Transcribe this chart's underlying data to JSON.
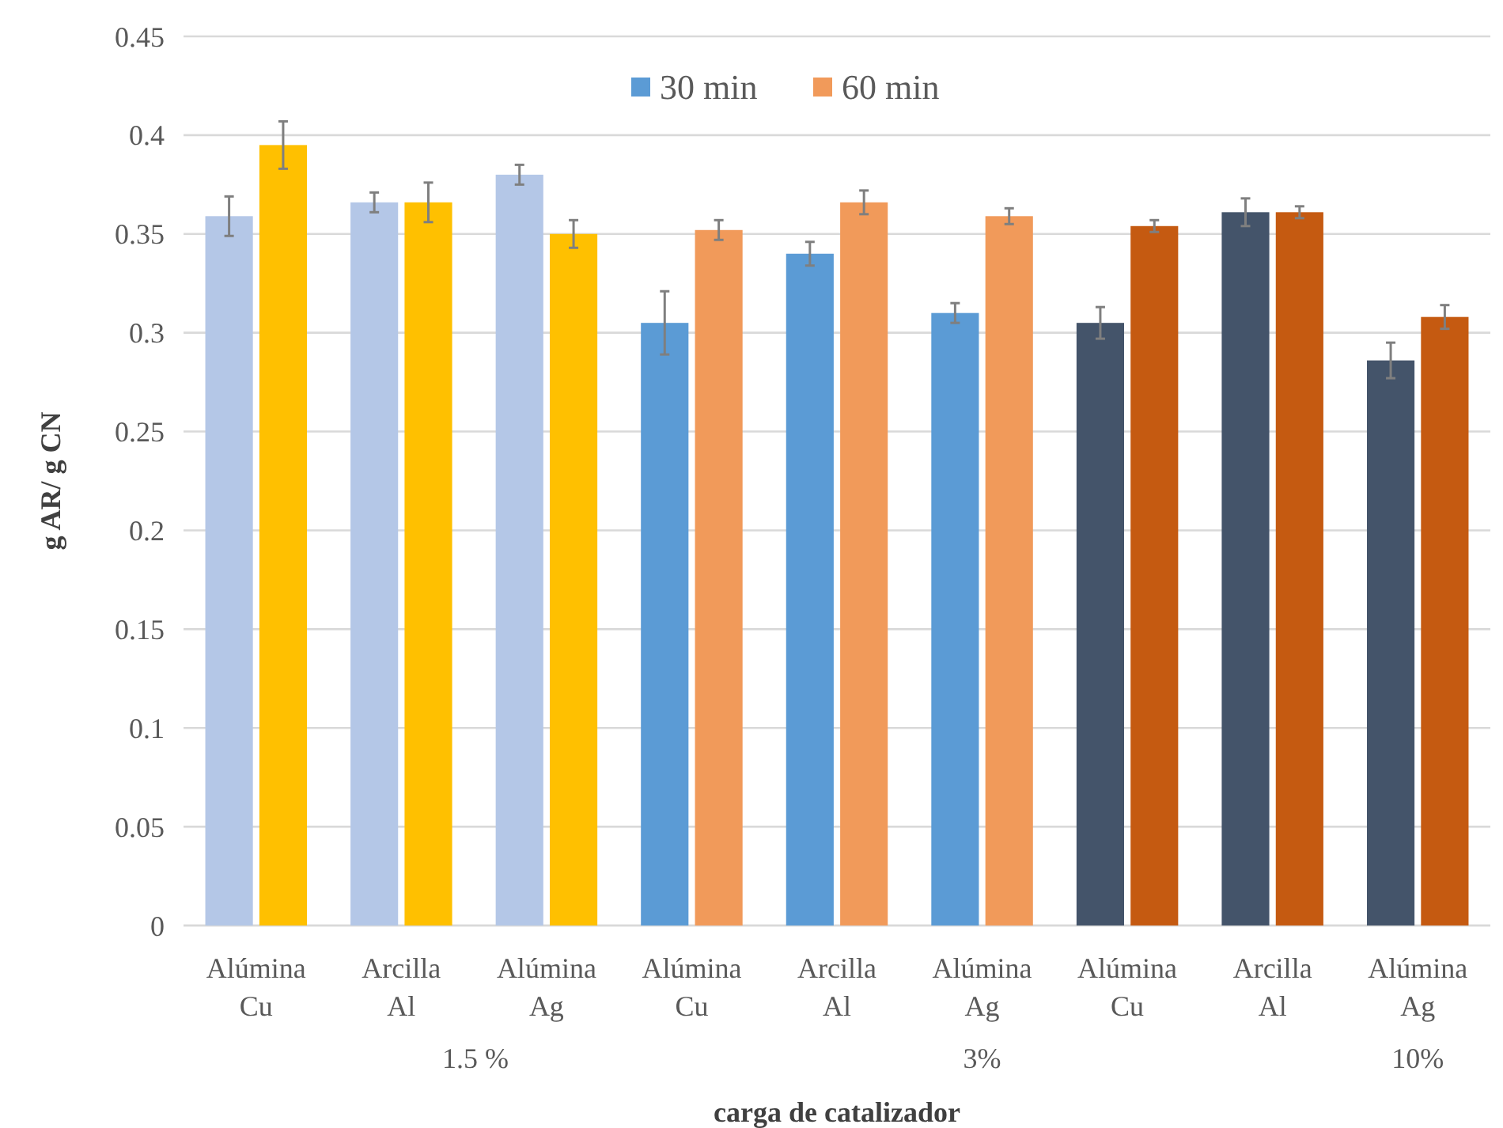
{
  "chart_data": {
    "type": "bar",
    "xlabel": "carga de catalizador",
    "ylabel": "g AR/ g CN",
    "categories": [
      "Alúmina Cu",
      "Arcilla Al",
      "Alúmina Ag",
      "Alúmina Cu",
      "Arcilla Al",
      "Alúmina Ag",
      "Alúmina Cu",
      "Arcilla Al",
      "Alúmina Ag"
    ],
    "series": [
      {
        "name": "30 min",
        "color": "#5b9bd5",
        "colors": [
          "#b4c7e7",
          "#b4c7e7",
          "#b4c7e7",
          "#5b9bd5",
          "#5b9bd5",
          "#5b9bd5",
          "#44546a",
          "#44546a",
          "#44546a"
        ],
        "values": [
          0.359,
          0.366,
          0.38,
          0.305,
          0.34,
          0.31,
          0.305,
          0.361,
          0.286
        ],
        "errors": [
          0.01,
          0.005,
          0.005,
          0.016,
          0.006,
          0.005,
          0.008,
          0.007,
          0.009
        ]
      },
      {
        "name": "60 min",
        "color": "#f19a5a",
        "colors": [
          "#ffc000",
          "#ffc000",
          "#ffc000",
          "#f19a5a",
          "#f19a5a",
          "#f19a5a",
          "#c55a11",
          "#c55a11",
          "#c55a11"
        ],
        "values": [
          0.395,
          0.366,
          0.35,
          0.352,
          0.366,
          0.359,
          0.354,
          0.361,
          0.308
        ],
        "errors": [
          0.012,
          0.01,
          0.007,
          0.005,
          0.006,
          0.004,
          0.003,
          0.003,
          0.006
        ]
      }
    ],
    "annotations": [
      "1.5 %",
      "3%",
      "10%"
    ],
    "ylim": [
      0,
      0.45
    ],
    "yticks": [
      {
        "value": 0,
        "label": "0"
      },
      {
        "value": 0.05,
        "label": "0.05"
      },
      {
        "value": 0.1,
        "label": "0.1"
      },
      {
        "value": 0.15,
        "label": "0.15"
      },
      {
        "value": 0.2,
        "label": "0.2"
      },
      {
        "value": 0.25,
        "label": "0.25"
      },
      {
        "value": 0.3,
        "label": "0.3"
      },
      {
        "value": 0.35,
        "label": "0.35"
      },
      {
        "value": 0.4,
        "label": "0.4"
      },
      {
        "value": 0.45,
        "label": "0.45"
      }
    ],
    "grid": "y",
    "legend": "top"
  }
}
